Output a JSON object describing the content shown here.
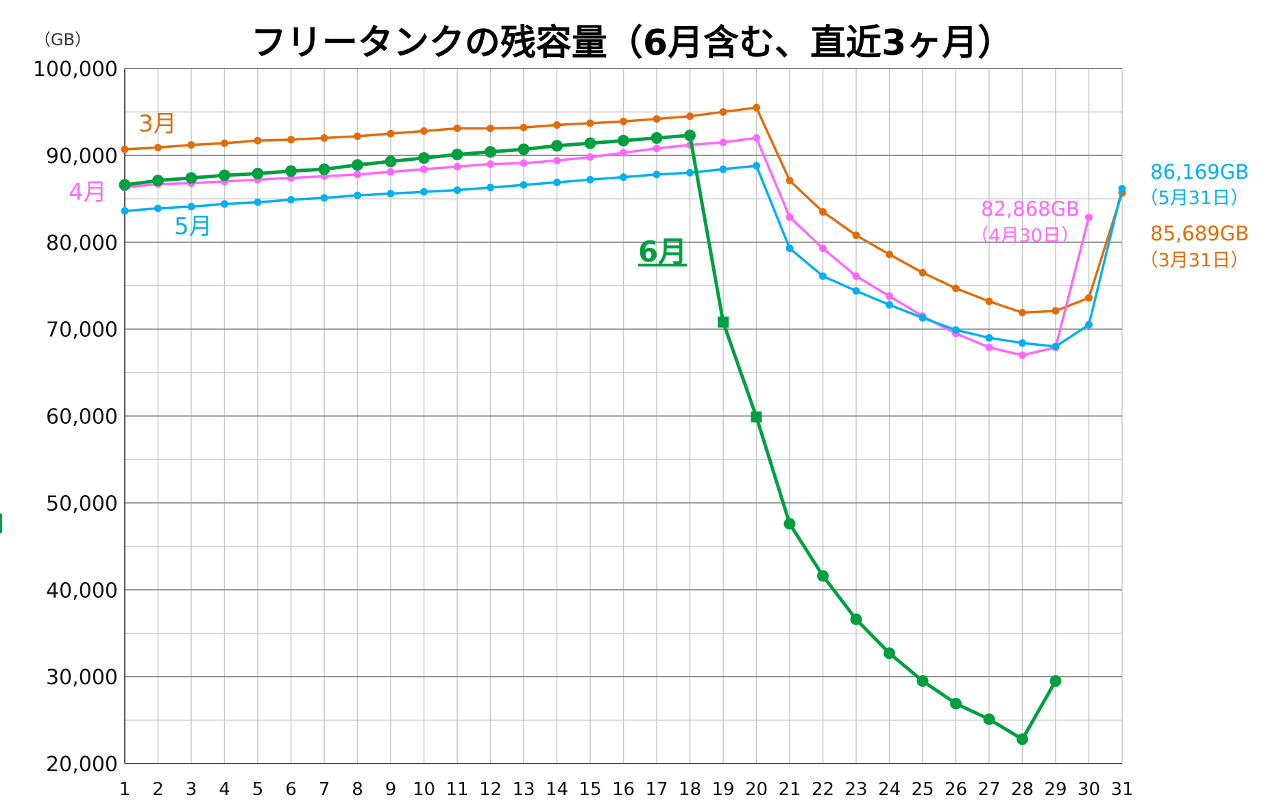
{
  "chart_data": {
    "type": "line",
    "title": "フリータンクの残容量（6月含む、直近3ヶ月）",
    "ylabel": "（GB）",
    "xlabel": "",
    "ylim": [
      20000,
      100000
    ],
    "yticks": [
      "100,000",
      "90,000",
      "80,000",
      "70,000",
      "60,000",
      "50,000",
      "40,000",
      "30,000",
      "20,000"
    ],
    "x": [
      1,
      2,
      3,
      4,
      5,
      6,
      7,
      8,
      9,
      10,
      11,
      12,
      13,
      14,
      15,
      16,
      17,
      18,
      19,
      20,
      21,
      22,
      23,
      24,
      25,
      26,
      27,
      28,
      29,
      30,
      31
    ],
    "series": [
      {
        "name": "3月",
        "color": "#e36c0a",
        "values": [
          90700,
          90900,
          91200,
          91400,
          91700,
          91800,
          92000,
          92200,
          92500,
          92800,
          93100,
          93100,
          93200,
          93500,
          93700,
          93900,
          94200,
          94500,
          95000,
          95500,
          87100,
          83500,
          80800,
          78600,
          76500,
          74700,
          73200,
          71900,
          72100,
          73600,
          85689
        ]
      },
      {
        "name": "4月",
        "color": "#ff66ff",
        "values": [
          86300,
          86700,
          86800,
          87000,
          87200,
          87400,
          87600,
          87800,
          88100,
          88400,
          88700,
          89000,
          89100,
          89400,
          89800,
          90300,
          90800,
          91200,
          91500,
          92000,
          82900,
          79300,
          76100,
          73800,
          71500,
          69500,
          67900,
          67000,
          67900,
          82868,
          null
        ]
      },
      {
        "name": "5月",
        "color": "#00b0f0",
        "values": [
          83600,
          83900,
          84100,
          84400,
          84600,
          84900,
          85100,
          85400,
          85600,
          85800,
          86000,
          86300,
          86600,
          86900,
          87200,
          87500,
          87800,
          88000,
          88400,
          88800,
          79300,
          76100,
          74400,
          72800,
          71300,
          69900,
          69000,
          68400,
          68000,
          70500,
          86169
        ]
      },
      {
        "name": "6月",
        "color": "#00a040",
        "values": [
          86600,
          87100,
          87400,
          87700,
          87900,
          88200,
          88400,
          88900,
          89300,
          89700,
          90100,
          90400,
          90700,
          91100,
          91400,
          91700,
          92000,
          92300,
          70800,
          59900,
          47600,
          41600,
          36600,
          32700,
          29500,
          26900,
          25100,
          22800,
          29500,
          null,
          null
        ]
      }
    ],
    "annotations": {
      "mar_label": "3月",
      "apr_label": "4月",
      "may_label": "5月",
      "jun_label": "6月",
      "may_end_value": "86,169GB",
      "may_end_date": "（5月31日）",
      "apr_end_value": "82,868GB",
      "apr_end_date": "（4月30日）",
      "mar_end_value": "85,689GB",
      "mar_end_date": "（3月31日）"
    }
  }
}
